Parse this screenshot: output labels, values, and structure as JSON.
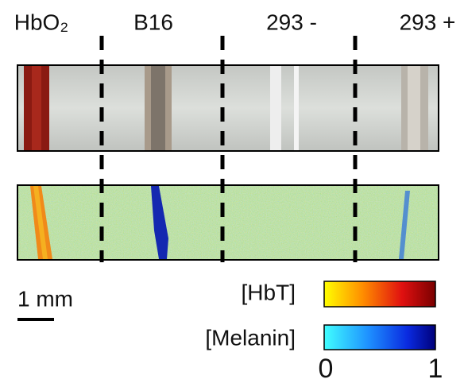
{
  "labels": [
    "HbO₂",
    "B16",
    "293 -",
    "293 +"
  ],
  "scale_bar": "1 mm",
  "colorbars": [
    {
      "name": "[HbT]"
    },
    {
      "name": "[Melanin]"
    }
  ],
  "colorbar_ticks": [
    0,
    1
  ]
}
